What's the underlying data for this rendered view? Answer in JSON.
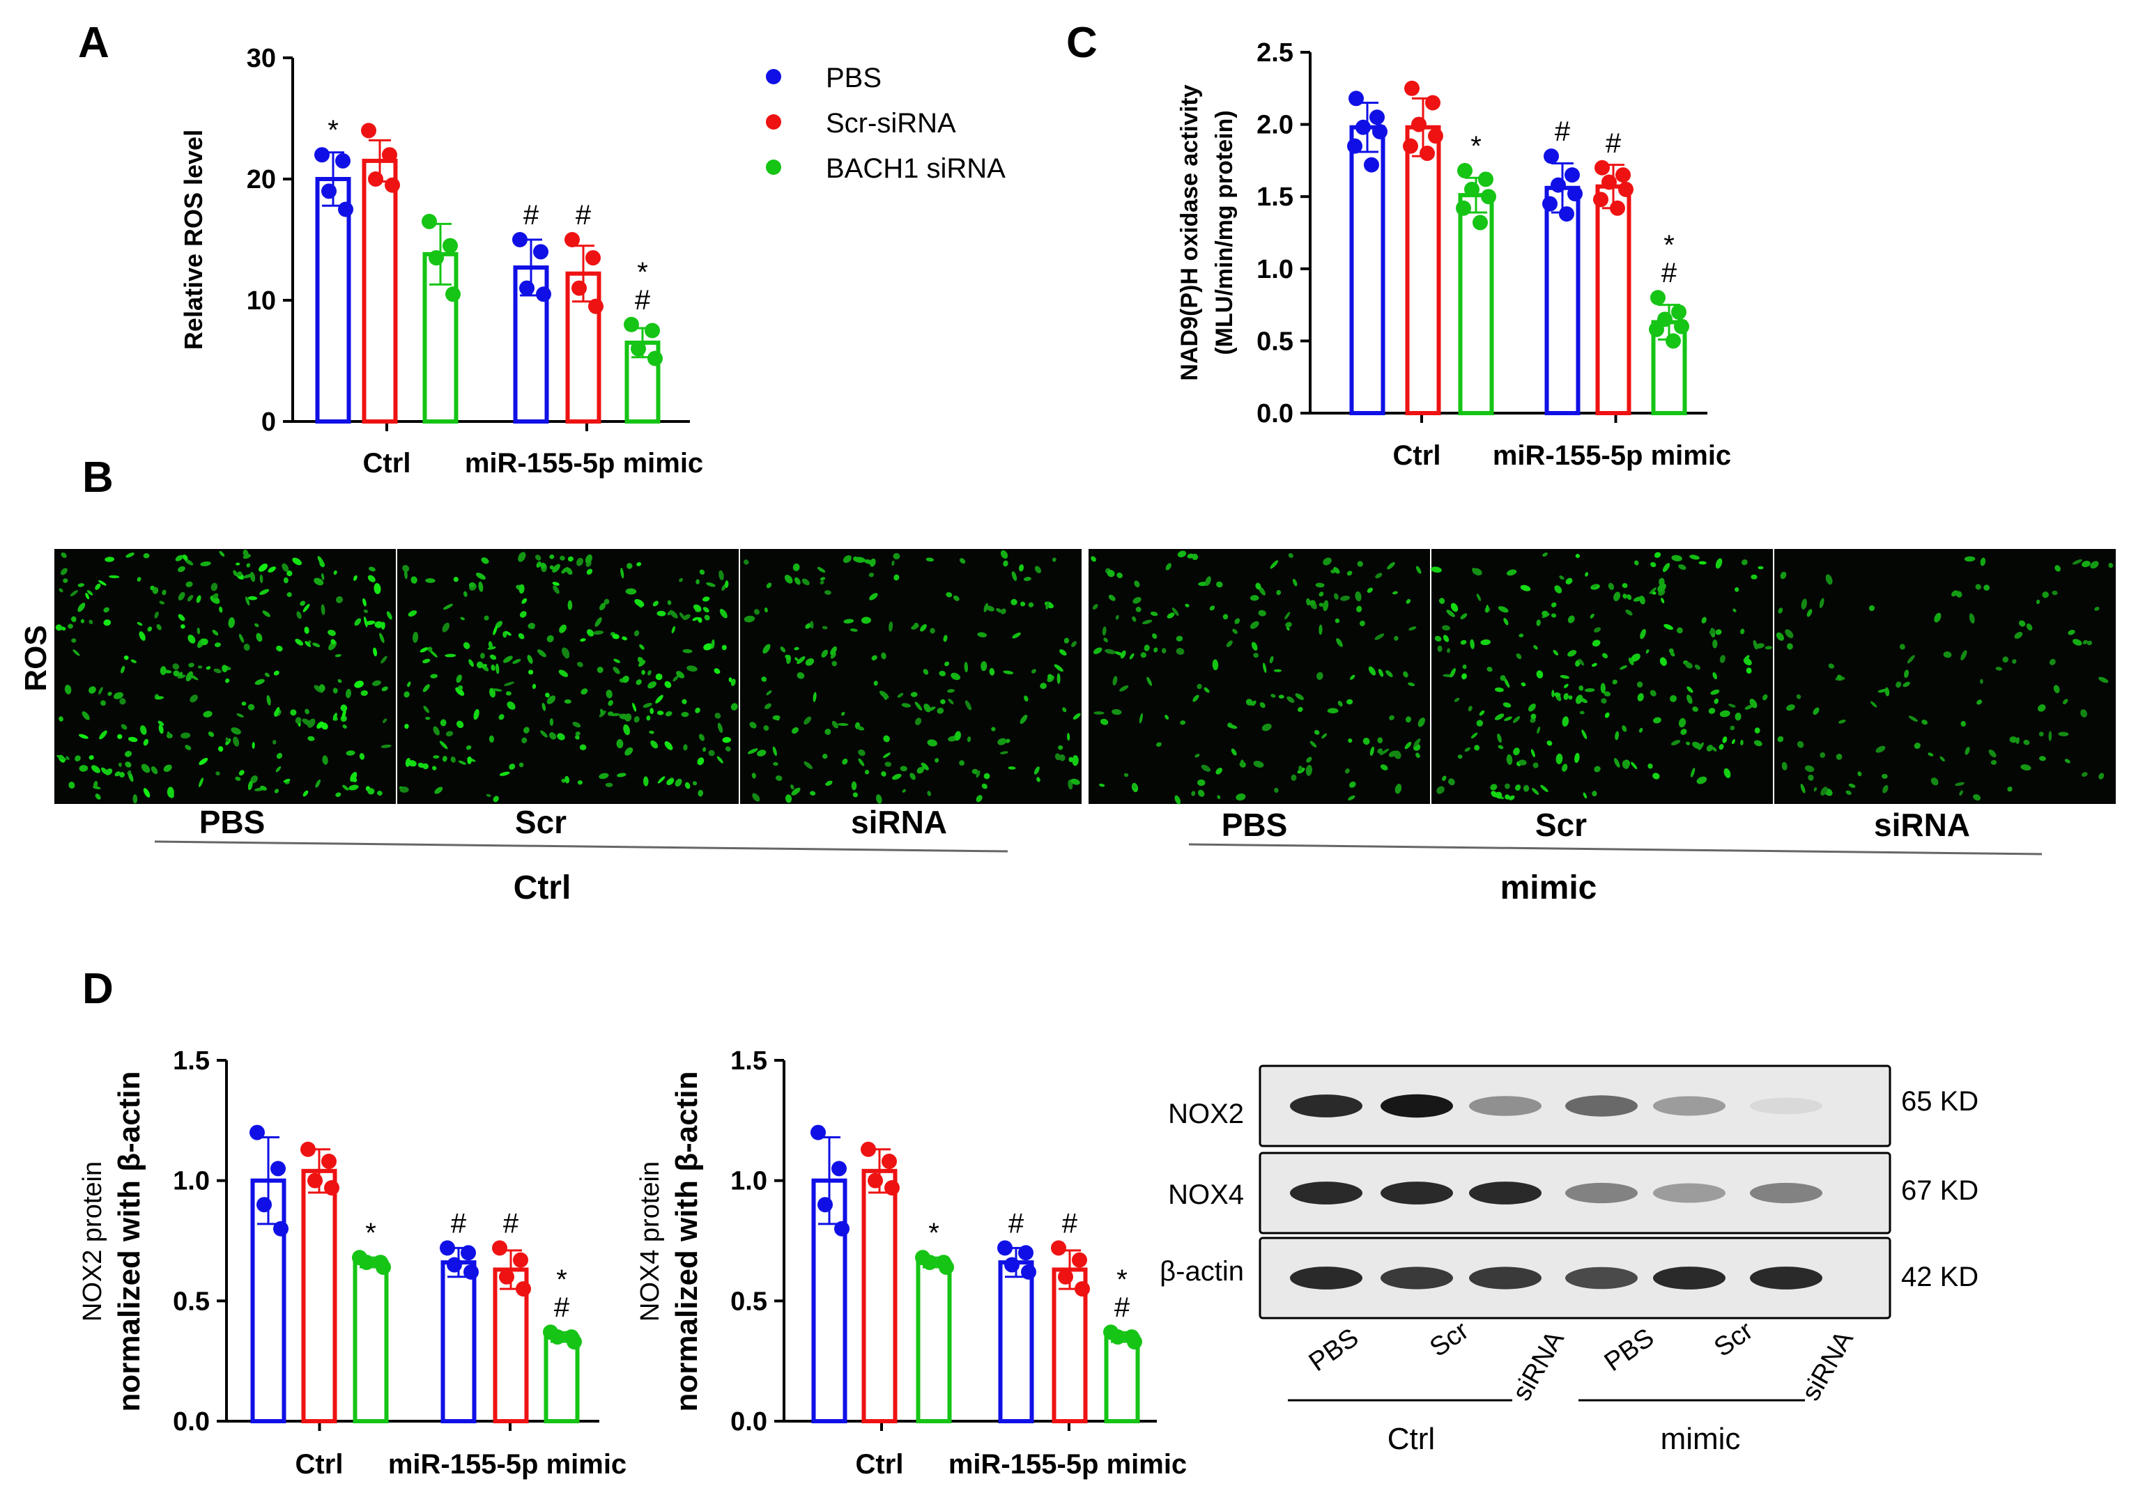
{
  "panel_labels": {
    "A": "A",
    "B": "B",
    "C": "C",
    "D": "D"
  },
  "colors": {
    "PBS": "#1010e6",
    "Scr-siRNA": "#ee1212",
    "BACH1 siRNA": "#15c415"
  },
  "legend": {
    "placement": "top-center",
    "items": [
      {
        "label": "PBS",
        "color": "#1010e6"
      },
      {
        "label": "Scr-siRNA",
        "color": "#ee1212"
      },
      {
        "label": "BACH1 siRNA",
        "color": "#15c415"
      }
    ]
  },
  "chart_data": [
    {
      "id": "A",
      "type": "bar",
      "title": "",
      "ylabel": "Relative ROS level",
      "ylim": [
        0,
        30
      ],
      "yticks": [
        "0",
        "10",
        "20",
        "30"
      ],
      "categories": [
        "Ctrl",
        "miR-155-5p mimic"
      ],
      "series": [
        {
          "name": "PBS",
          "values": [
            20,
            12.7
          ],
          "errors": [
            2.2,
            2.3
          ],
          "points": [
            [
              22,
              21.5,
              19,
              17.5
            ],
            [
              15,
              14,
              11,
              10.5
            ]
          ]
        },
        {
          "name": "Scr-siRNA",
          "values": [
            21.5,
            12.2
          ],
          "errors": [
            1.7,
            2.3
          ],
          "points": [
            [
              24,
              22,
              20,
              19.5
            ],
            [
              15,
              13.5,
              11,
              9.5
            ]
          ]
        },
        {
          "name": "BACH1 siRNA",
          "values": [
            13.8,
            6.5
          ],
          "errors": [
            2.5,
            1.2
          ],
          "points": [
            [
              16.5,
              14.5,
              13.5,
              10.5
            ],
            [
              8,
              7.5,
              6,
              5.2
            ]
          ]
        }
      ],
      "annotations": [
        [
          "*",
          "",
          "",
          ""
        ],
        [
          "#",
          "#",
          "*\n#"
        ]
      ]
    },
    {
      "id": "C",
      "type": "bar",
      "title": "",
      "ylabel": "NAD9(P)H oxidase activity",
      "ylabel2": "(MLU/min/mg protein)",
      "ylim": [
        0,
        2.5
      ],
      "yticks": [
        "0.0",
        "0.5",
        "1.0",
        "1.5",
        "2.0",
        "2.5"
      ],
      "categories": [
        "Ctrl",
        "miR-155-5p mimic"
      ],
      "series": [
        {
          "name": "PBS",
          "values": [
            1.98,
            1.56
          ],
          "errors": [
            0.17,
            0.17
          ],
          "points": [
            [
              2.18,
              2.05,
              1.98,
              1.95,
              1.85,
              1.72
            ],
            [
              1.78,
              1.65,
              1.58,
              1.52,
              1.45,
              1.38
            ]
          ]
        },
        {
          "name": "Scr-siRNA",
          "values": [
            1.98,
            1.57
          ],
          "errors": [
            0.2,
            0.15
          ],
          "points": [
            [
              2.25,
              2.15,
              2.0,
              1.92,
              1.85,
              1.8
            ],
            [
              1.7,
              1.65,
              1.6,
              1.55,
              1.48,
              1.42
            ]
          ]
        },
        {
          "name": "BACH1 siRNA",
          "values": [
            1.51,
            0.63
          ],
          "errors": [
            0.12,
            0.12
          ],
          "points": [
            [
              1.68,
              1.62,
              1.55,
              1.5,
              1.42,
              1.32
            ],
            [
              0.8,
              0.7,
              0.65,
              0.6,
              0.58,
              0.5
            ]
          ]
        }
      ],
      "annotations": [
        [
          "",
          "",
          "*"
        ],
        [
          "#",
          "#",
          "*\n#"
        ]
      ]
    },
    {
      "id": "D1",
      "type": "bar",
      "title": "",
      "ylabel": "NOX2 protein",
      "ylabel2": "normalized with β-actin",
      "ylim": [
        0,
        1.5
      ],
      "yticks": [
        "0.0",
        "0.5",
        "1.0",
        "1.5"
      ],
      "categories": [
        "Ctrl",
        "miR-155-5p mimic"
      ],
      "series": [
        {
          "name": "PBS",
          "values": [
            1.0,
            0.66
          ],
          "errors": [
            0.18,
            0.06
          ],
          "points": [
            [
              1.2,
              1.05,
              0.9,
              0.8
            ],
            [
              0.72,
              0.7,
              0.65,
              0.62
            ]
          ]
        },
        {
          "name": "Scr-siRNA",
          "values": [
            1.04,
            0.63
          ],
          "errors": [
            0.09,
            0.08
          ],
          "points": [
            [
              1.13,
              1.08,
              1.0,
              0.97
            ],
            [
              0.72,
              0.67,
              0.6,
              0.55
            ]
          ]
        },
        {
          "name": "BACH1 siRNA",
          "values": [
            0.66,
            0.35
          ],
          "errors": [
            0.02,
            0.02
          ],
          "points": [
            [
              0.68,
              0.66,
              0.66,
              0.64
            ],
            [
              0.37,
              0.35,
              0.35,
              0.33
            ]
          ]
        }
      ],
      "annotations": [
        [
          "",
          "",
          "*"
        ],
        [
          "#",
          "#",
          "*\n#"
        ]
      ]
    },
    {
      "id": "D2",
      "type": "bar",
      "title": "",
      "ylabel": "NOX4 protein",
      "ylabel2": "normalized with β-actin",
      "ylim": [
        0,
        1.5
      ],
      "yticks": [
        "0.0",
        "0.5",
        "1.0",
        "1.5"
      ],
      "categories": [
        "Ctrl",
        "miR-155-5p mimic"
      ],
      "series": [
        {
          "name": "PBS",
          "values": [
            1.0,
            0.66
          ],
          "errors": [
            0.18,
            0.06
          ],
          "points": [
            [
              1.2,
              1.05,
              0.9,
              0.8
            ],
            [
              0.72,
              0.7,
              0.65,
              0.62
            ]
          ]
        },
        {
          "name": "Scr-siRNA",
          "values": [
            1.04,
            0.63
          ],
          "errors": [
            0.09,
            0.08
          ],
          "points": [
            [
              1.13,
              1.08,
              1.0,
              0.97
            ],
            [
              0.72,
              0.67,
              0.6,
              0.55
            ]
          ]
        },
        {
          "name": "BACH1 siRNA",
          "values": [
            0.66,
            0.35
          ],
          "errors": [
            0.02,
            0.02
          ],
          "points": [
            [
              0.68,
              0.66,
              0.66,
              0.64
            ],
            [
              0.37,
              0.35,
              0.35,
              0.33
            ]
          ]
        }
      ],
      "annotations": [
        [
          "",
          "",
          "*"
        ],
        [
          "#",
          "#",
          "*\n#"
        ]
      ]
    }
  ],
  "panel_b": {
    "row_label": "ROS",
    "image_labels": [
      "PBS",
      "Scr",
      "siRNA",
      "PBS",
      "Scr",
      "siRNA"
    ],
    "image_intensity": [
      1.0,
      0.95,
      0.7,
      0.65,
      0.85,
      0.4
    ],
    "group_labels": [
      "Ctrl",
      "mimic"
    ]
  },
  "blot": {
    "rows": [
      {
        "protein": "NOX2",
        "size": "65 KD",
        "intensity": [
          0.9,
          0.95,
          0.55,
          0.7,
          0.5,
          0.15
        ]
      },
      {
        "protein": "NOX4",
        "size": "67 KD",
        "intensity": [
          0.9,
          0.9,
          0.9,
          0.6,
          0.5,
          0.6
        ]
      },
      {
        "protein": "β-actin",
        "size": "42 KD",
        "intensity": [
          0.9,
          0.85,
          0.85,
          0.8,
          0.9,
          0.9
        ]
      }
    ],
    "lane_labels": [
      "PBS",
      "Scr",
      "siRNA",
      "PBS",
      "Scr",
      "siRNA"
    ],
    "group_labels": [
      "Ctrl",
      "mimic"
    ]
  }
}
